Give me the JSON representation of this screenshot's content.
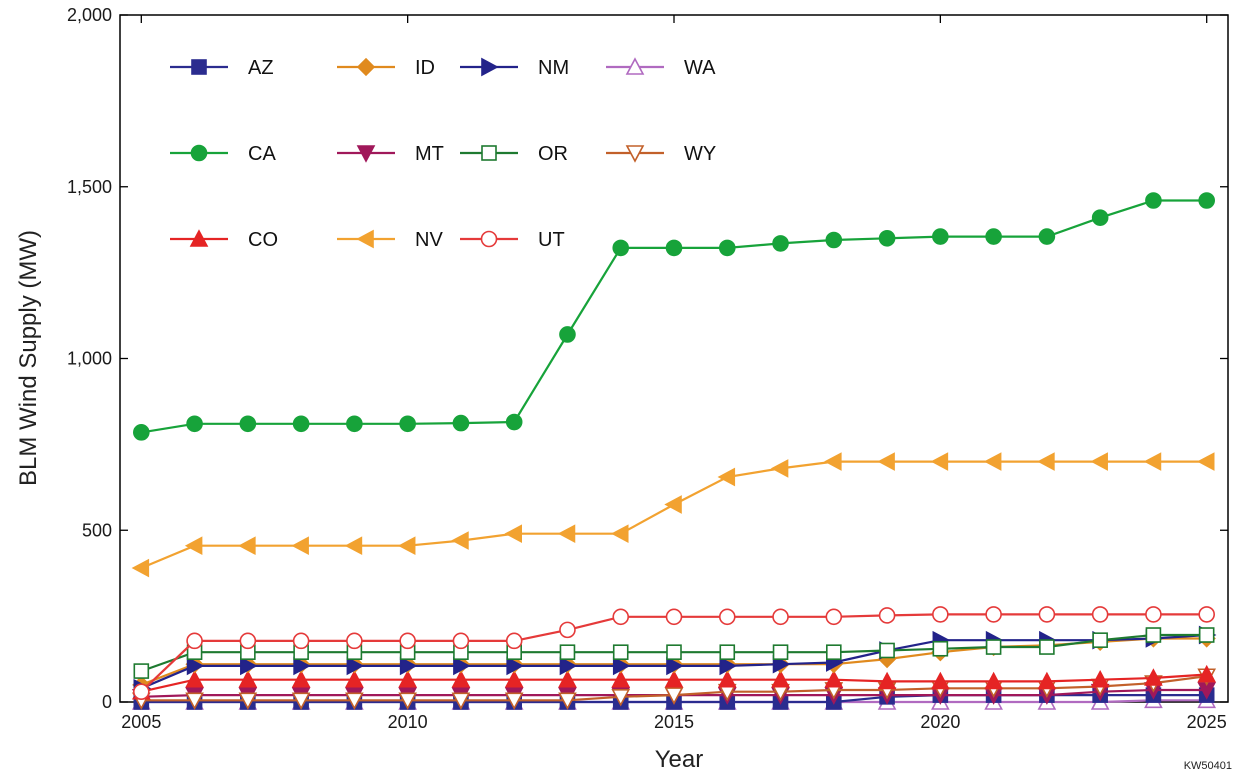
{
  "chart_data": {
    "type": "line",
    "title": "",
    "xlabel": "Year",
    "ylabel": "BLM Wind Supply (MW)",
    "xlim": [
      2004.6,
      2025.4
    ],
    "ylim": [
      0,
      2000
    ],
    "xticks": [
      2005,
      2010,
      2015,
      2020,
      2025
    ],
    "yticks": [
      0,
      500,
      1000,
      1500,
      2000
    ],
    "xtick_labels": [
      "2005",
      "2010",
      "2015",
      "2020",
      "2025"
    ],
    "ytick_labels": [
      "0",
      "500",
      "1,000",
      "1,500",
      "2,000"
    ],
    "grid": false,
    "legend_position": "top-left",
    "x": [
      2005,
      2006,
      2007,
      2008,
      2009,
      2010,
      2011,
      2012,
      2013,
      2014,
      2015,
      2016,
      2017,
      2018,
      2019,
      2020,
      2021,
      2022,
      2023,
      2024,
      2025
    ],
    "series": [
      {
        "name": "AZ",
        "color": "#2b2c8f",
        "marker": "square-filled",
        "values": [
          0,
          0,
          0,
          0,
          0,
          0,
          0,
          0,
          0,
          0,
          0,
          0,
          0,
          0,
          15,
          20,
          20,
          20,
          20,
          20,
          20
        ]
      },
      {
        "name": "ID",
        "color": "#e08a1e",
        "marker": "diamond-filled",
        "values": [
          50,
          110,
          110,
          110,
          110,
          110,
          110,
          110,
          110,
          110,
          110,
          110,
          110,
          110,
          125,
          145,
          160,
          165,
          175,
          185,
          185
        ]
      },
      {
        "name": "NM",
        "color": "#23238a",
        "marker": "triangle-right-filled",
        "values": [
          40,
          105,
          105,
          105,
          105,
          105,
          105,
          105,
          105,
          105,
          105,
          105,
          110,
          115,
          150,
          180,
          180,
          180,
          180,
          185,
          195
        ]
      },
      {
        "name": "WA",
        "color": "#b06ac0",
        "marker": "triangle-up-open",
        "values": [
          0,
          0,
          0,
          0,
          0,
          0,
          0,
          0,
          0,
          0,
          0,
          0,
          0,
          0,
          0,
          0,
          0,
          0,
          0,
          5,
          5
        ]
      },
      {
        "name": "CA",
        "color": "#17a33a",
        "marker": "circle-filled",
        "values": [
          785,
          810,
          810,
          810,
          810,
          810,
          812,
          815,
          1070,
          1322,
          1322,
          1322,
          1335,
          1345,
          1350,
          1355,
          1355,
          1355,
          1410,
          1460,
          1460
        ]
      },
      {
        "name": "MT",
        "color": "#a0185a",
        "marker": "triangle-down-filled",
        "values": [
          15,
          20,
          20,
          20,
          20,
          20,
          20,
          20,
          20,
          20,
          20,
          20,
          20,
          20,
          20,
          20,
          20,
          20,
          30,
          35,
          35
        ]
      },
      {
        "name": "OR",
        "color": "#1e7a30",
        "marker": "square-open",
        "values": [
          90,
          145,
          145,
          145,
          145,
          145,
          145,
          145,
          145,
          145,
          145,
          145,
          145,
          145,
          150,
          155,
          160,
          160,
          180,
          195,
          195
        ]
      },
      {
        "name": "WY",
        "color": "#c2602a",
        "marker": "triangle-down-open",
        "values": [
          5,
          5,
          5,
          5,
          5,
          5,
          5,
          5,
          5,
          15,
          20,
          30,
          30,
          35,
          35,
          40,
          40,
          40,
          45,
          55,
          75
        ]
      },
      {
        "name": "CO",
        "color": "#e52424",
        "marker": "triangle-up-filled",
        "values": [
          30,
          65,
          65,
          65,
          65,
          65,
          65,
          65,
          65,
          65,
          65,
          65,
          65,
          65,
          60,
          60,
          60,
          60,
          65,
          70,
          80
        ]
      },
      {
        "name": "NV",
        "color": "#f2a230",
        "marker": "triangle-left-filled",
        "values": [
          390,
          455,
          455,
          455,
          455,
          455,
          470,
          490,
          490,
          490,
          575,
          655,
          680,
          700,
          700,
          700,
          700,
          700,
          700,
          700,
          700
        ]
      },
      {
        "name": "UT",
        "color": "#e53a3a",
        "marker": "circle-open",
        "values": [
          30,
          178,
          178,
          178,
          178,
          178,
          178,
          178,
          210,
          248,
          248,
          248,
          248,
          248,
          252,
          255,
          255,
          255,
          255,
          255,
          255
        ]
      }
    ],
    "legend_rows": [
      [
        "AZ",
        "ID",
        "NM",
        "WA"
      ],
      [
        "CA",
        "MT",
        "OR",
        "WY"
      ],
      [
        "CO",
        "NV",
        "UT"
      ]
    ]
  },
  "figure_code": "KW50401"
}
